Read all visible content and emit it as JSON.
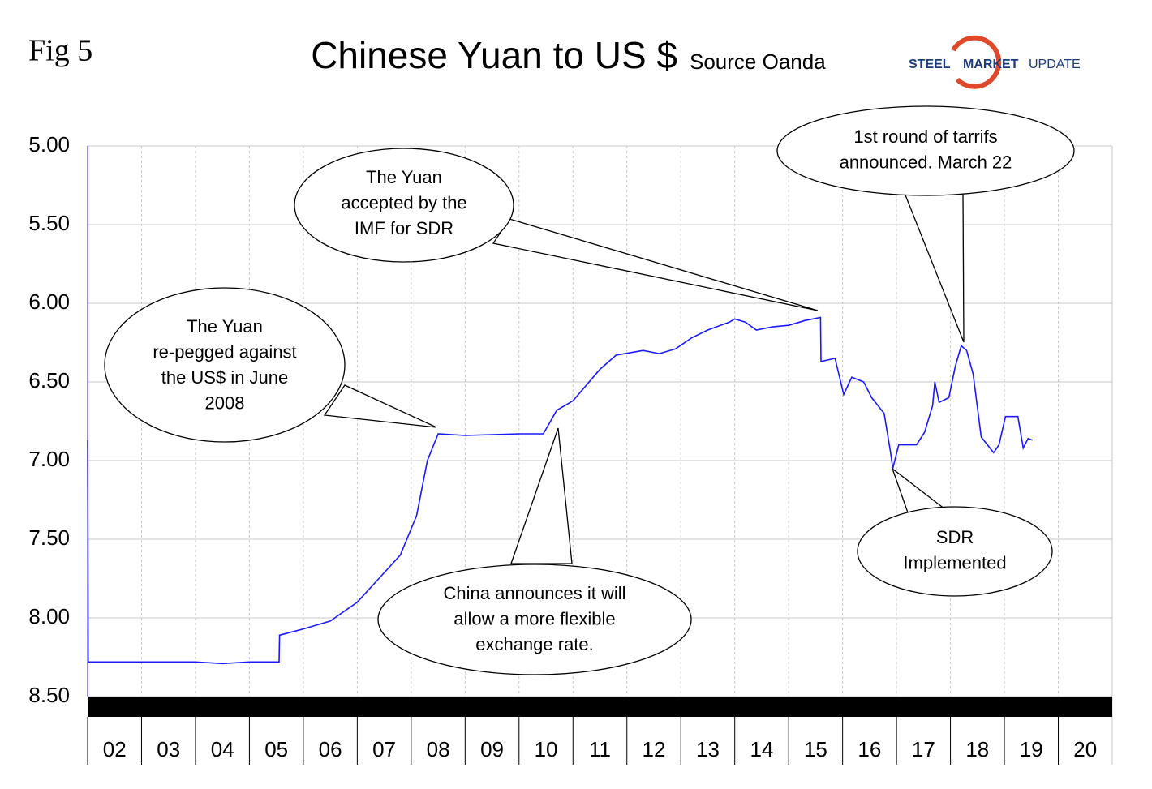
{
  "chart_data": {
    "type": "line",
    "figure_label": "Fig 5",
    "title": "Chinese Yuan to US $",
    "subtitle": "Source Oanda",
    "logo": {
      "first": "STEEL",
      "second": "MARKET",
      "third": "UPDATE"
    },
    "xlim": [
      2,
      21
    ],
    "xticks": [
      {
        "value": 2,
        "label": "02"
      },
      {
        "value": 3,
        "label": "03"
      },
      {
        "value": 4,
        "label": "04"
      },
      {
        "value": 5,
        "label": "05"
      },
      {
        "value": 6,
        "label": "06"
      },
      {
        "value": 7,
        "label": "07"
      },
      {
        "value": 8,
        "label": "08"
      },
      {
        "value": 9,
        "label": "09"
      },
      10,
      11,
      12,
      13,
      14,
      15,
      16,
      17,
      18,
      19,
      20
    ],
    "ylim": [
      8.5,
      5
    ],
    "yticks": [
      {
        "value": 5,
        "label": "5.00"
      },
      {
        "value": 5.5,
        "label": "5.50"
      },
      {
        "value": 6,
        "label": "6.00"
      },
      {
        "value": 6.5,
        "label": "6.50"
      },
      {
        "value": 7,
        "label": "7.00"
      },
      {
        "value": 7.5,
        "label": "7.50"
      },
      {
        "value": 8,
        "label": "8.00"
      },
      {
        "value": 8.5,
        "label": "8.50"
      }
    ],
    "grid": true,
    "series": [
      {
        "color": "#1a1aff",
        "x": [
          2.0,
          2.01,
          3.0,
          4.0,
          4.5,
          5.0,
          5.55,
          5.56,
          6.0,
          6.5,
          7.0,
          7.4,
          7.8,
          8.1,
          8.3,
          8.5,
          9.0,
          10.0,
          10.45,
          10.55,
          10.7,
          11.0,
          11.5,
          11.8,
          12.3,
          12.6,
          12.9,
          13.2,
          13.5,
          13.9,
          14.0,
          14.2,
          14.4,
          14.7,
          15.0,
          15.3,
          15.59,
          15.6,
          15.86,
          16.02,
          16.17,
          16.39,
          16.54,
          16.77,
          16.89,
          16.93,
          17.04,
          17.37,
          17.52,
          17.67,
          17.71,
          17.79,
          17.97,
          18.09,
          18.2,
          18.3,
          18.42,
          18.57,
          18.8,
          18.9,
          19.02,
          19.25,
          19.35,
          19.44,
          19.52
        ],
        "values": [
          6.87,
          8.28,
          8.28,
          8.28,
          8.29,
          8.28,
          8.28,
          8.11,
          8.07,
          8.02,
          7.9,
          7.75,
          7.6,
          7.35,
          7.0,
          6.83,
          6.84,
          6.83,
          6.83,
          6.77,
          6.68,
          6.62,
          6.42,
          6.33,
          6.3,
          6.32,
          6.29,
          6.22,
          6.17,
          6.12,
          6.1,
          6.12,
          6.17,
          6.15,
          6.14,
          6.11,
          6.09,
          6.37,
          6.35,
          6.58,
          6.47,
          6.5,
          6.6,
          6.7,
          6.95,
          7.05,
          6.9,
          6.9,
          6.82,
          6.65,
          6.5,
          6.63,
          6.6,
          6.4,
          6.27,
          6.3,
          6.45,
          6.85,
          6.95,
          6.9,
          6.72,
          6.72,
          6.92,
          6.86,
          6.87
        ]
      }
    ],
    "annotations": [
      [
        "The Yuan",
        "re-pegged against",
        "the US$ in June",
        "2008"
      ],
      [
        "The Yuan",
        "accepted by the",
        "IMF for SDR"
      ],
      [
        "1st round of tarrifs",
        "announced. March 22"
      ],
      [
        "China announces it will",
        "allow a more flexible",
        "exchange rate."
      ],
      [
        "SDR",
        "Implemented"
      ]
    ]
  }
}
